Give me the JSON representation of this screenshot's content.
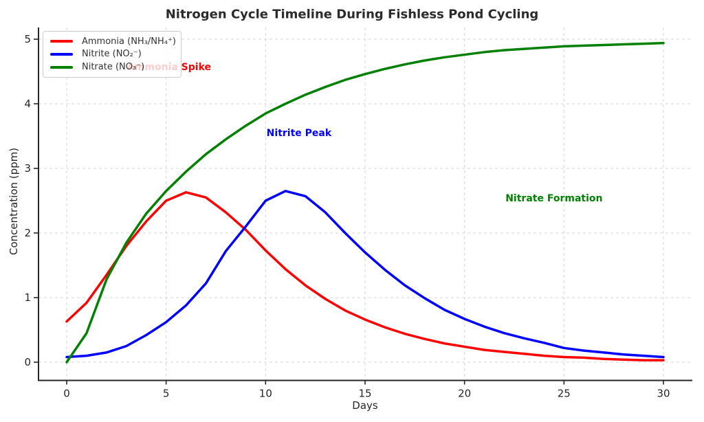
{
  "chart_data": {
    "type": "line",
    "title": "Nitrogen Cycle Timeline During Fishless Pond Cycling",
    "xlabel": "Days",
    "ylabel": "Concentration (ppm)",
    "xlim": [
      0,
      30
    ],
    "ylim": [
      0,
      5
    ],
    "x_ticks": [
      0,
      5,
      10,
      15,
      20,
      25,
      30
    ],
    "y_ticks": [
      0,
      1,
      2,
      3,
      4,
      5
    ],
    "grid": "dashed",
    "legend_position": "upper-left",
    "x": [
      0,
      1,
      2,
      3,
      4,
      5,
      6,
      7,
      8,
      9,
      10,
      11,
      12,
      13,
      14,
      15,
      16,
      17,
      18,
      19,
      20,
      21,
      22,
      23,
      24,
      25,
      26,
      27,
      28,
      29,
      30
    ],
    "series": [
      {
        "name": "Ammonia (NH₃/NH₄⁺)",
        "slug": "ammonia",
        "color": "#ff0000",
        "values": [
          0.63,
          0.92,
          1.35,
          1.8,
          2.18,
          2.5,
          2.63,
          2.55,
          2.32,
          2.05,
          1.73,
          1.44,
          1.19,
          0.98,
          0.8,
          0.66,
          0.54,
          0.44,
          0.36,
          0.29,
          0.24,
          0.19,
          0.16,
          0.13,
          0.1,
          0.08,
          0.07,
          0.05,
          0.04,
          0.03,
          0.03
        ]
      },
      {
        "name": "Nitrite (NO₂⁻)",
        "slug": "nitrite",
        "color": "#0000ff",
        "values": [
          0.08,
          0.1,
          0.15,
          0.25,
          0.42,
          0.62,
          0.88,
          1.22,
          1.72,
          2.1,
          2.5,
          2.65,
          2.57,
          2.32,
          2.0,
          1.7,
          1.43,
          1.19,
          0.99,
          0.81,
          0.67,
          0.55,
          0.45,
          0.37,
          0.3,
          0.22,
          0.18,
          0.15,
          0.12,
          0.1,
          0.08
        ]
      },
      {
        "name": "Nitrate (NO₃⁻)",
        "slug": "nitrate",
        "color": "#008000",
        "values": [
          0.0,
          0.45,
          1.28,
          1.85,
          2.3,
          2.65,
          2.95,
          3.22,
          3.45,
          3.66,
          3.85,
          4.0,
          4.14,
          4.26,
          4.37,
          4.46,
          4.54,
          4.61,
          4.67,
          4.72,
          4.76,
          4.8,
          4.83,
          4.85,
          4.87,
          4.89,
          4.9,
          4.91,
          4.92,
          4.93,
          4.94
        ]
      }
    ],
    "annotations": [
      {
        "text": "Ammonia Spike",
        "color": "#ff0000",
        "x": 5.15,
        "y": 4.56
      },
      {
        "text": "Nitrite Peak",
        "color": "#0000ff",
        "x": 11.68,
        "y": 3.54
      },
      {
        "text": "Nitrate Formation",
        "color": "#008000",
        "x": 24.5,
        "y": 2.53
      }
    ]
  }
}
